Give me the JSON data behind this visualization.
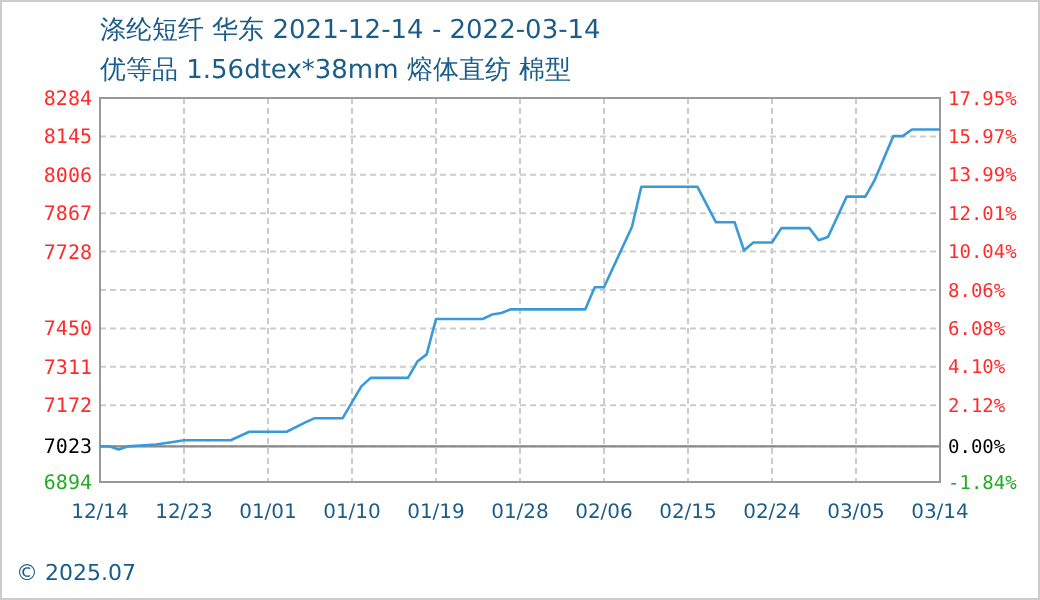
{
  "chart_data": {
    "type": "line",
    "title": "涤纶短纤 华东 2021-12-14 - 2022-03-14",
    "subtitle": "优等品 1.56dtex*38mm 熔体直纺 棉型",
    "x": [
      "2021-12-14",
      "2021-12-15",
      "2021-12-16",
      "2021-12-17",
      "2021-12-20",
      "2021-12-22",
      "2021-12-23",
      "2021-12-28",
      "2021-12-30",
      "2022-01-03",
      "2022-01-05",
      "2022-01-06",
      "2022-01-09",
      "2022-01-11",
      "2022-01-12",
      "2022-01-16",
      "2022-01-17",
      "2022-01-18",
      "2022-01-19",
      "2022-01-24",
      "2022-01-25",
      "2022-01-26",
      "2022-01-27",
      "2022-02-04",
      "2022-02-05",
      "2022-02-06",
      "2022-02-09",
      "2022-02-10",
      "2022-02-16",
      "2022-02-18",
      "2022-02-20",
      "2022-02-21",
      "2022-02-22",
      "2022-02-24",
      "2022-02-25",
      "2022-02-28",
      "2022-03-01",
      "2022-03-02",
      "2022-03-04",
      "2022-03-06",
      "2022-03-07",
      "2022-03-09",
      "2022-03-10",
      "2022-03-11",
      "2022-03-14"
    ],
    "series": [
      {
        "color": "#3a9ad9",
        "values": [
          7023,
          7023,
          7012,
          7023,
          7030,
          7040,
          7045,
          7045,
          7076,
          7076,
          7110,
          7125,
          7125,
          7240,
          7271,
          7271,
          7330,
          7356,
          7484,
          7484,
          7500,
          7506,
          7519,
          7519,
          7599,
          7599,
          7818,
          7963,
          7963,
          7834,
          7834,
          7732,
          7761,
          7761,
          7813,
          7813,
          7769,
          7781,
          7927,
          7927,
          7987,
          8146,
          8146,
          8170,
          8170
        ]
      }
    ],
    "xlim": [
      "2021-12-14",
      "2022-03-14"
    ],
    "xticks": [
      {
        "value": "2021-12-14",
        "label": "12/14"
      },
      {
        "value": "2021-12-23",
        "label": "12/23"
      },
      {
        "value": "2022-01-01",
        "label": "01/01"
      },
      {
        "value": "2022-01-10",
        "label": "01/10"
      },
      {
        "value": "2022-01-19",
        "label": "01/19"
      },
      {
        "value": "2022-01-28",
        "label": "01/28"
      },
      {
        "value": "2022-02-06",
        "label": "02/06"
      },
      {
        "value": "2022-02-15",
        "label": "02/15"
      },
      {
        "value": "2022-02-24",
        "label": "02/24"
      },
      {
        "value": "2022-03-05",
        "label": "03/05"
      },
      {
        "value": "2022-03-14",
        "label": "03/14"
      }
    ],
    "ylim": [
      6894,
      8284
    ],
    "yticks": [
      6894,
      7023,
      7172,
      7311,
      7450,
      {
        "value": 7589,
        "label": null
      },
      7728,
      7867,
      8006,
      8145,
      8284
    ],
    "y2lim": [
      -1.84,
      17.95
    ],
    "y2ticks": [
      {
        "value": -1.84,
        "label": "-1.84%"
      },
      {
        "value": 0,
        "label": "0.00%"
      },
      {
        "value": 2.12,
        "label": "2.12%"
      },
      {
        "value": 4.1,
        "label": "4.10%"
      },
      {
        "value": 6.08,
        "label": "6.08%"
      },
      {
        "value": 8.06,
        "label": "8.06%"
      },
      {
        "value": 10.04,
        "label": "10.04%"
      },
      {
        "value": 12.01,
        "label": "12.01%"
      },
      {
        "value": 13.99,
        "label": "13.99%"
      },
      {
        "value": 15.97,
        "label": "15.97%"
      },
      {
        "value": 17.95,
        "label": "17.95%"
      }
    ],
    "ref_lines": [
      {
        "axis": "y",
        "value": 7023,
        "color": "#888888"
      }
    ],
    "grid": true,
    "annotations": [
      "© 2025.07"
    ]
  }
}
